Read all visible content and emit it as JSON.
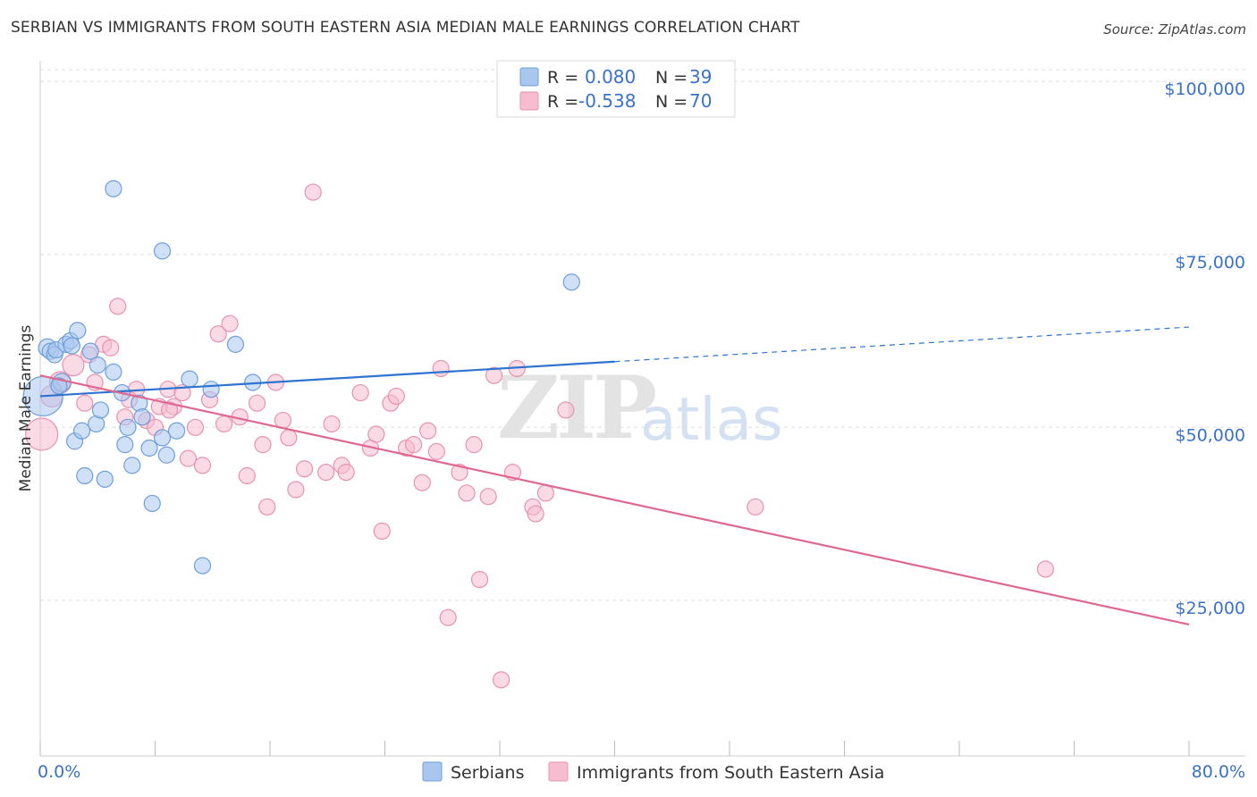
{
  "title": "SERBIAN VS IMMIGRANTS FROM SOUTH EASTERN ASIA MEDIAN MALE EARNINGS CORRELATION CHART",
  "source": "Source: ZipAtlas.com",
  "watermark": {
    "part1": "ZIP",
    "part2": "atlas"
  },
  "colors": {
    "serbians_fill": "#a9c7ee",
    "serbians_stroke": "#6d9fdc",
    "serbians_line": "#2e74cf",
    "immigrants_fill": "#f6bcd0",
    "immigrants_stroke": "#e892b2",
    "immigrants_line": "#e0688f",
    "grid": "#dddddd",
    "tick_text": "#3a72c8"
  },
  "legend_top": {
    "rows": [
      {
        "r_label": "R =",
        "r_value": "0.080",
        "n_label": "N =",
        "n_value": "39"
      },
      {
        "r_label": "R =",
        "r_value": "-0.538",
        "n_label": "N =",
        "n_value": "70"
      }
    ]
  },
  "legend_bottom": {
    "serbians": "Serbians",
    "immigrants": "Immigrants from South Eastern Asia"
  },
  "chart_data": {
    "type": "scatter",
    "title": "SERBIAN VS IMMIGRANTS FROM SOUTH EASTERN ASIA MEDIAN MALE EARNINGS CORRELATION CHART",
    "xlabel": "",
    "ylabel": "Median Male Earnings",
    "xlim": [
      0,
      80
    ],
    "ylim": [
      2500,
      103000
    ],
    "x_tick_labels": [
      "0.0%",
      "80.0%"
    ],
    "y_ticks": [
      25000,
      50000,
      75000,
      100000
    ],
    "y_tick_labels": [
      "$25,000",
      "$50,000",
      "$75,000",
      "$100,000"
    ],
    "grid": true,
    "legend_placement": "top-center",
    "series": [
      {
        "name": "Serbians",
        "r": 0.08,
        "n": 39,
        "trend": {
          "x0": 0,
          "y0": 54500,
          "x1": 40,
          "y1": 59500,
          "dashed_to_x": 80,
          "dashed_to_y": 64500
        },
        "points": [
          [
            0.2,
            54500,
            22
          ],
          [
            0.5,
            61500,
            10
          ],
          [
            0.7,
            61000,
            9
          ],
          [
            1.0,
            60500,
            9
          ],
          [
            1.1,
            61200,
            9
          ],
          [
            1.5,
            56500,
            10
          ],
          [
            1.8,
            62000,
            9
          ],
          [
            2.1,
            62500,
            9
          ],
          [
            2.6,
            64000,
            9
          ],
          [
            2.4,
            48000,
            9
          ],
          [
            2.9,
            49500,
            9
          ],
          [
            3.1,
            43000,
            9
          ],
          [
            3.5,
            61000,
            9
          ],
          [
            4.0,
            59000,
            9
          ],
          [
            3.9,
            50500,
            9
          ],
          [
            4.2,
            52500,
            9
          ],
          [
            4.5,
            42500,
            9
          ],
          [
            5.1,
            58000,
            9
          ],
          [
            5.7,
            55000,
            9
          ],
          [
            5.9,
            47500,
            9
          ],
          [
            6.1,
            50000,
            9
          ],
          [
            6.4,
            44500,
            9
          ],
          [
            6.9,
            53500,
            9
          ],
          [
            7.1,
            51500,
            9
          ],
          [
            7.6,
            47000,
            9
          ],
          [
            7.8,
            39000,
            9
          ],
          [
            8.5,
            48500,
            9
          ],
          [
            8.8,
            46000,
            9
          ],
          [
            9.5,
            49500,
            9
          ],
          [
            10.4,
            57000,
            9
          ],
          [
            11.3,
            30000,
            9
          ],
          [
            11.9,
            55500,
            9
          ],
          [
            13.6,
            62000,
            9
          ],
          [
            14.8,
            56500,
            9
          ],
          [
            5.1,
            84500,
            9
          ],
          [
            8.5,
            75500,
            9
          ],
          [
            37.0,
            71000,
            9
          ],
          [
            1.3,
            56000,
            9
          ],
          [
            2.2,
            61800,
            9
          ]
        ]
      },
      {
        "name": "Immigrants from South Eastern Asia",
        "r": -0.538,
        "n": 70,
        "trend": {
          "x0": 0,
          "y0": 57500,
          "x1": 80,
          "y1": 21500
        },
        "points": [
          [
            0.1,
            49000,
            18
          ],
          [
            0.8,
            54500,
            12
          ],
          [
            1.4,
            56500,
            12
          ],
          [
            2.3,
            59000,
            12
          ],
          [
            3.1,
            53500,
            9
          ],
          [
            3.4,
            60500,
            9
          ],
          [
            3.8,
            56500,
            9
          ],
          [
            4.4,
            62000,
            9
          ],
          [
            4.9,
            61500,
            9
          ],
          [
            5.4,
            67500,
            9
          ],
          [
            5.9,
            51500,
            9
          ],
          [
            6.7,
            55500,
            9
          ],
          [
            7.4,
            51000,
            9
          ],
          [
            8.0,
            50000,
            9
          ],
          [
            8.3,
            53000,
            9
          ],
          [
            8.9,
            55500,
            9
          ],
          [
            9.3,
            53000,
            9
          ],
          [
            9.9,
            55000,
            9
          ],
          [
            10.3,
            45500,
            9
          ],
          [
            10.8,
            50000,
            9
          ],
          [
            11.3,
            44500,
            9
          ],
          [
            11.8,
            54000,
            9
          ],
          [
            12.4,
            63500,
            9
          ],
          [
            12.8,
            50500,
            9
          ],
          [
            13.2,
            65000,
            9
          ],
          [
            13.9,
            51500,
            9
          ],
          [
            14.4,
            43000,
            9
          ],
          [
            15.1,
            53500,
            9
          ],
          [
            15.5,
            47500,
            9
          ],
          [
            15.8,
            38500,
            9
          ],
          [
            16.4,
            56500,
            9
          ],
          [
            16.9,
            51000,
            9
          ],
          [
            17.3,
            48500,
            9
          ],
          [
            17.8,
            41000,
            9
          ],
          [
            18.4,
            44000,
            9
          ],
          [
            19.0,
            84000,
            9
          ],
          [
            19.9,
            43500,
            9
          ],
          [
            20.3,
            50500,
            9
          ],
          [
            21.0,
            44500,
            9
          ],
          [
            21.3,
            43500,
            9
          ],
          [
            22.3,
            55000,
            9
          ],
          [
            23.0,
            47000,
            9
          ],
          [
            23.4,
            49000,
            9
          ],
          [
            23.8,
            35000,
            9
          ],
          [
            24.4,
            53500,
            9
          ],
          [
            24.8,
            54500,
            9
          ],
          [
            25.5,
            47000,
            9
          ],
          [
            26.0,
            47500,
            9
          ],
          [
            26.6,
            42000,
            9
          ],
          [
            27.0,
            49500,
            9
          ],
          [
            27.6,
            46500,
            9
          ],
          [
            27.9,
            58500,
            9
          ],
          [
            28.4,
            22500,
            9
          ],
          [
            29.2,
            43500,
            9
          ],
          [
            29.7,
            40500,
            9
          ],
          [
            30.2,
            47500,
            9
          ],
          [
            30.6,
            28000,
            9
          ],
          [
            31.2,
            40000,
            9
          ],
          [
            31.6,
            57500,
            9
          ],
          [
            32.1,
            13500,
            9
          ],
          [
            32.9,
            43500,
            9
          ],
          [
            33.2,
            58500,
            9
          ],
          [
            34.3,
            38500,
            9
          ],
          [
            34.5,
            37500,
            9
          ],
          [
            35.2,
            40500,
            9
          ],
          [
            36.6,
            52500,
            9
          ],
          [
            49.8,
            38500,
            9
          ],
          [
            70.0,
            29500,
            9
          ],
          [
            6.2,
            54000,
            9
          ],
          [
            9.0,
            52500,
            9
          ]
        ]
      }
    ]
  }
}
